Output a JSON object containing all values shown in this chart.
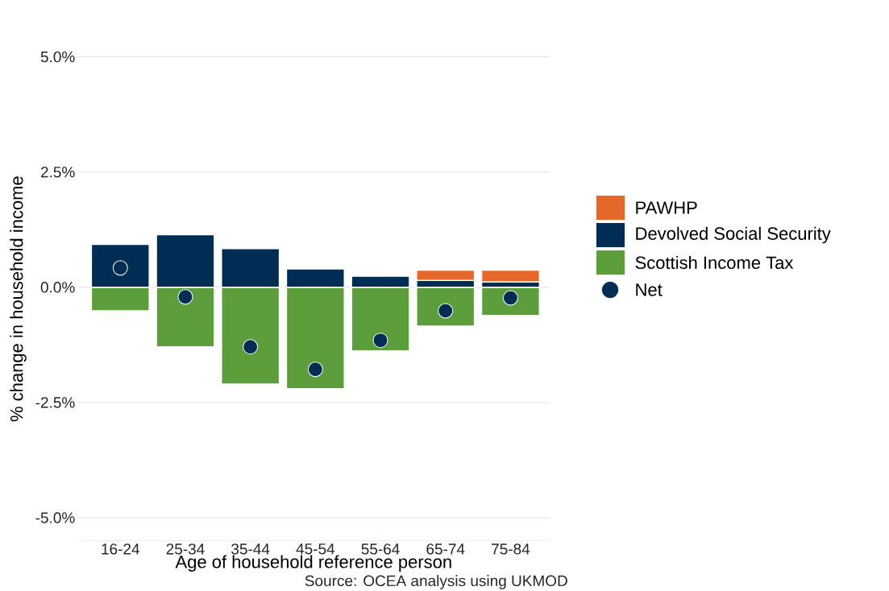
{
  "chart_data": {
    "type": "bar",
    "stacked": true,
    "xlabel": "Age of household reference person",
    "ylabel": "% change in household income",
    "annotations": [
      "Source: OCEA analysis using UKMOD"
    ],
    "categories": [
      "16-24",
      "25-34",
      "35-44",
      "45-54",
      "55-64",
      "65-74",
      "75-84"
    ],
    "series": [
      {
        "name": "Scottish Income Tax",
        "color": "#5c9e3c",
        "values": [
          -0.51,
          -1.29,
          -2.1,
          -2.2,
          -1.38,
          -0.84,
          -0.61
        ]
      },
      {
        "name": "Devolved Social Security",
        "color": "#002d54",
        "values": [
          0.93,
          1.14,
          0.84,
          0.4,
          0.24,
          0.15,
          0.12
        ]
      },
      {
        "name": "PAWHP",
        "color": "#e5672a",
        "values": [
          null,
          null,
          null,
          null,
          null,
          0.22,
          0.25
        ]
      },
      {
        "name": "Net",
        "type": "scatter",
        "marker": "circle",
        "color": "#002d54",
        "values": [
          0.42,
          -0.21,
          -1.29,
          -1.78,
          -1.15,
          -0.51,
          -0.23
        ]
      }
    ],
    "ylim": [
      -5.5,
      5.0
    ],
    "yticks": [
      {
        "value": -5,
        "label": "-5.0%"
      },
      {
        "value": -2.5,
        "label": "-2.5%"
      },
      {
        "value": 0,
        "label": "0.0%"
      },
      {
        "value": 2.5,
        "label": "2.5%"
      },
      {
        "value": 5,
        "label": "5.0%"
      }
    ],
    "grid": "y",
    "legend": "right"
  }
}
